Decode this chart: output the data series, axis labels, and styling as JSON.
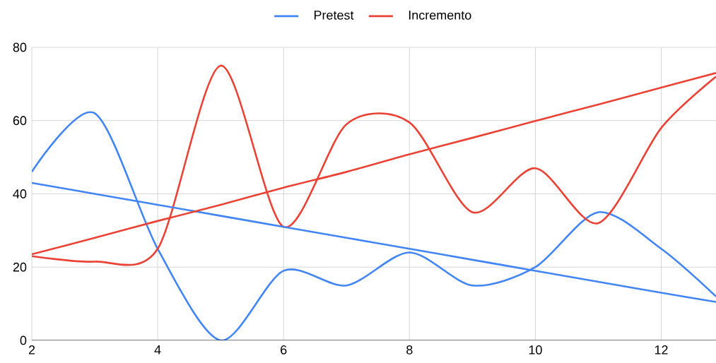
{
  "chart_data": {
    "type": "line",
    "x": [
      2,
      3,
      4,
      5,
      6,
      7,
      8,
      9,
      10,
      11,
      12,
      12.87
    ],
    "xlim": [
      2,
      12.87
    ],
    "xticks": [
      2,
      4,
      6,
      8,
      10,
      12
    ],
    "ylim": [
      0,
      80
    ],
    "yticks": [
      0,
      20,
      40,
      60,
      80
    ],
    "grid": true,
    "legend": "top",
    "series": [
      {
        "name": "Pretest",
        "color": "#4285f4",
        "values": [
          46,
          62,
          25,
          0,
          19,
          15,
          24,
          15,
          20,
          35,
          25,
          12
        ]
      },
      {
        "name": "Incremento",
        "color": "#ea4335",
        "values": [
          23,
          21.5,
          25,
          75,
          31,
          59,
          59.5,
          35,
          47,
          32,
          58,
          72
        ]
      },
      {
        "color": "#4285f4",
        "values": [
          43,
          40,
          37,
          34,
          31,
          28,
          25,
          22,
          19,
          16,
          13,
          10.5
        ]
      },
      {
        "color": "#ea4335",
        "values": [
          23.5,
          28,
          32.6,
          37,
          41.7,
          46,
          50.8,
          55.3,
          59.9,
          64.4,
          69,
          73
        ]
      }
    ]
  }
}
